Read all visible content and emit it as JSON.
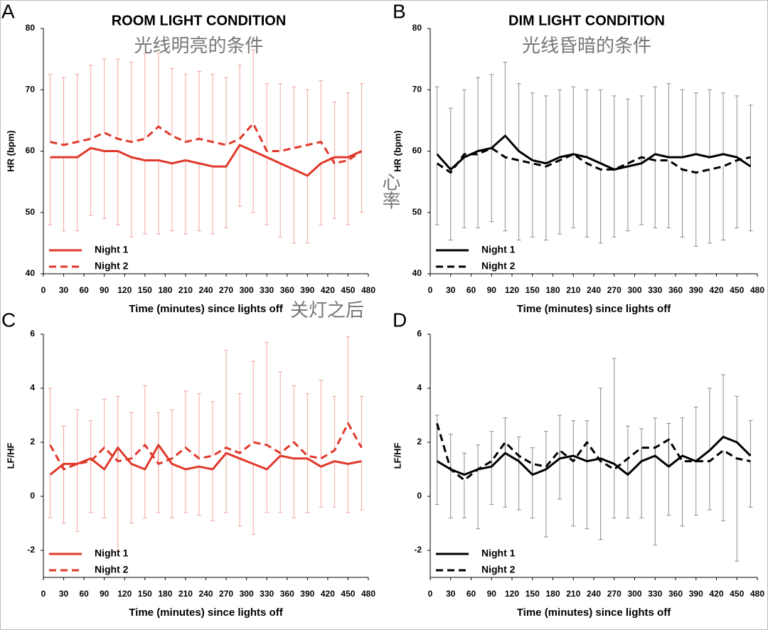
{
  "chart_data": [
    {
      "type": "line",
      "panel_label": "A",
      "title": "ROOM LIGHT CONDITION",
      "subtitle": "光线明亮的条件",
      "x_label": "Time (minutes) since lights off",
      "x_label_annotation": "关灯之后",
      "y_label": "HR (bpm)",
      "x": [
        10,
        30,
        50,
        70,
        90,
        110,
        130,
        150,
        170,
        190,
        210,
        230,
        250,
        270,
        290,
        310,
        330,
        350,
        370,
        390,
        410,
        430,
        450,
        470
      ],
      "series": [
        {
          "name": "Night 1",
          "color": "#e0392b",
          "line_style": "solid",
          "error_side": "down",
          "values": [
            59,
            59,
            59,
            60.5,
            60,
            60,
            59,
            58.5,
            58.5,
            58,
            58.5,
            58,
            57.5,
            57.5,
            61,
            60,
            59,
            58,
            57,
            56,
            58,
            59,
            59,
            60
          ],
          "errors": [
            11,
            12,
            12,
            11,
            11,
            12,
            13,
            12,
            12,
            11,
            12,
            11,
            11,
            10,
            10,
            10,
            11,
            12,
            12,
            11,
            10,
            10,
            11,
            10
          ]
        },
        {
          "name": "Night 2",
          "color": "#e0392b",
          "line_style": "dashed",
          "error_side": "up",
          "values": [
            61.5,
            61,
            61.5,
            62,
            63,
            62,
            61.5,
            62,
            64,
            62.5,
            61.5,
            62,
            61.5,
            61,
            62,
            64.5,
            60,
            60,
            60.5,
            61,
            61.5,
            58,
            58.5,
            60
          ],
          "errors": [
            11,
            11,
            11,
            12,
            12,
            13,
            13,
            14,
            12,
            11,
            11,
            11,
            11,
            11,
            12,
            12,
            11,
            11,
            10,
            9,
            10,
            10,
            11,
            11
          ]
        }
      ],
      "xlim": [
        0,
        480
      ],
      "xticks": [
        0,
        30,
        60,
        90,
        120,
        150,
        180,
        210,
        240,
        270,
        300,
        330,
        360,
        390,
        420,
        450,
        480
      ],
      "ylim": [
        40,
        80
      ],
      "yticks": [
        40,
        50,
        60,
        70,
        80
      ],
      "legend": "lower left"
    },
    {
      "type": "line",
      "panel_label": "B",
      "title": "DIM LIGHT CONDITION",
      "subtitle": "光线昏暗的条件",
      "x_label": "Time (minutes) since lights off",
      "y_label": "HR (bpm)",
      "y_label_annotation": "心率",
      "x": [
        10,
        30,
        50,
        70,
        90,
        110,
        130,
        150,
        170,
        190,
        210,
        230,
        250,
        270,
        290,
        310,
        330,
        350,
        370,
        390,
        410,
        430,
        450,
        470
      ],
      "series": [
        {
          "name": "Night 1",
          "color": "#000000",
          "line_style": "solid",
          "error_side": "up",
          "values": [
            59.5,
            57,
            59,
            60,
            60.5,
            62.5,
            60,
            58.5,
            58,
            59,
            59.5,
            59,
            58,
            57,
            57.5,
            58,
            59.5,
            59,
            59,
            59.5,
            59,
            59.5,
            59,
            57.5
          ],
          "errors": [
            11,
            10,
            11,
            12,
            12,
            12,
            11,
            11,
            11,
            11,
            11,
            11,
            12,
            12,
            11,
            11,
            11,
            12,
            11,
            10,
            11,
            10,
            10,
            10
          ]
        },
        {
          "name": "Night 2",
          "color": "#000000",
          "line_style": "dashed",
          "error_side": "down",
          "values": [
            58,
            56.5,
            59.5,
            59.5,
            60.5,
            59,
            58.5,
            58,
            57.5,
            58.5,
            59.5,
            58,
            57,
            57,
            58,
            59,
            58.5,
            58.5,
            57,
            56.5,
            57,
            57.5,
            58.5,
            59
          ],
          "errors": [
            10,
            11,
            12,
            12,
            12,
            12,
            13,
            12,
            12,
            12,
            12,
            12,
            12,
            11,
            11,
            11,
            11,
            11,
            11,
            12,
            12,
            12,
            11,
            12
          ]
        }
      ],
      "xlim": [
        0,
        480
      ],
      "xticks": [
        0,
        30,
        60,
        90,
        120,
        150,
        180,
        210,
        240,
        270,
        300,
        330,
        360,
        390,
        420,
        450,
        480
      ],
      "ylim": [
        40,
        80
      ],
      "yticks": [
        40,
        50,
        60,
        70,
        80
      ],
      "legend": "lower left"
    },
    {
      "type": "line",
      "panel_label": "C",
      "x_label": "Time (minutes) since lights off",
      "y_label": "LF/HF",
      "x": [
        10,
        30,
        50,
        70,
        90,
        110,
        130,
        150,
        170,
        190,
        210,
        230,
        250,
        270,
        290,
        310,
        330,
        350,
        370,
        390,
        410,
        430,
        450,
        470
      ],
      "series": [
        {
          "name": "Night 1",
          "color": "#e0392b",
          "line_style": "solid",
          "error_side": "down",
          "values": [
            0.8,
            1.2,
            1.2,
            1.4,
            1.0,
            1.8,
            1.2,
            1.0,
            1.9,
            1.2,
            1.0,
            1.1,
            1.0,
            1.6,
            1.4,
            1.2,
            1.0,
            1.5,
            1.4,
            1.4,
            1.1,
            1.3,
            1.2,
            1.3
          ],
          "errors": [
            1.6,
            2.2,
            2.5,
            2.0,
            1.8,
            3.8,
            2.2,
            1.8,
            2.5,
            2.0,
            1.6,
            1.8,
            1.9,
            2.2,
            2.5,
            2.6,
            1.6,
            2.1,
            2.2,
            2.0,
            1.5,
            1.7,
            1.8,
            1.8
          ]
        },
        {
          "name": "Night 2",
          "color": "#e0392b",
          "line_style": "dashed",
          "error_side": "up",
          "values": [
            1.9,
            1.0,
            1.2,
            1.3,
            1.8,
            1.3,
            1.4,
            1.9,
            1.2,
            1.4,
            1.8,
            1.4,
            1.5,
            1.8,
            1.6,
            2.0,
            1.9,
            1.6,
            2.0,
            1.5,
            1.4,
            1.7,
            2.7,
            1.8
          ],
          "errors": [
            2.1,
            1.6,
            2.0,
            1.5,
            1.8,
            2.4,
            1.7,
            2.2,
            1.9,
            1.8,
            2.1,
            2.4,
            2.0,
            3.6,
            2.2,
            3.0,
            3.8,
            3.0,
            2.1,
            2.3,
            2.9,
            2.0,
            3.2,
            1.9
          ]
        }
      ],
      "xlim": [
        0,
        480
      ],
      "xticks": [
        0,
        30,
        60,
        90,
        120,
        150,
        180,
        210,
        240,
        270,
        300,
        330,
        360,
        390,
        420,
        450,
        480
      ],
      "ylim": [
        -3,
        6
      ],
      "yticks": [
        -2,
        0,
        2,
        4,
        6
      ],
      "legend": "lower left"
    },
    {
      "type": "line",
      "panel_label": "D",
      "x_label": "Time (minutes) since lights off",
      "y_label": "LF/HF",
      "x": [
        10,
        30,
        50,
        70,
        90,
        110,
        130,
        150,
        170,
        190,
        210,
        230,
        250,
        270,
        290,
        310,
        330,
        350,
        370,
        390,
        410,
        430,
        450,
        470
      ],
      "series": [
        {
          "name": "Night 1",
          "color": "#000000",
          "line_style": "solid",
          "error_side": "up",
          "values": [
            1.3,
            1.0,
            0.8,
            1.0,
            1.1,
            1.6,
            1.3,
            0.8,
            1.0,
            1.4,
            1.5,
            1.3,
            1.4,
            1.2,
            0.8,
            1.3,
            1.5,
            1.1,
            1.5,
            1.3,
            1.7,
            2.2,
            2.0,
            1.5
          ],
          "errors": [
            1.7,
            1.3,
            0.8,
            0.9,
            1.3,
            1.3,
            0.9,
            1.0,
            1.4,
            1.6,
            1.3,
            1.5,
            2.6,
            3.9,
            1.8,
            1.2,
            1.4,
            1.6,
            1.4,
            2.0,
            2.3,
            2.3,
            1.7,
            1.3
          ]
        },
        {
          "name": "Night 2",
          "color": "#000000",
          "line_style": "dashed",
          "error_side": "down",
          "values": [
            2.7,
            1.0,
            0.6,
            1.0,
            1.3,
            2.0,
            1.5,
            1.2,
            1.1,
            1.7,
            1.3,
            2.0,
            1.3,
            1.0,
            1.4,
            1.8,
            1.8,
            2.1,
            1.3,
            1.3,
            1.3,
            1.7,
            1.4,
            1.3
          ],
          "errors": [
            3.0,
            1.8,
            1.4,
            2.2,
            1.6,
            2.4,
            2.0,
            2.0,
            2.6,
            1.8,
            2.4,
            3.2,
            2.9,
            1.8,
            2.2,
            2.6,
            3.6,
            2.8,
            2.4,
            2.0,
            1.8,
            2.6,
            3.8,
            1.7
          ]
        }
      ],
      "xlim": [
        0,
        480
      ],
      "xticks": [
        0,
        30,
        60,
        90,
        120,
        150,
        180,
        210,
        240,
        270,
        300,
        330,
        360,
        390,
        420,
        450,
        480
      ],
      "ylim": [
        -3,
        6
      ],
      "yticks": [
        -2,
        0,
        2,
        4,
        6
      ],
      "legend": "lower left"
    }
  ]
}
